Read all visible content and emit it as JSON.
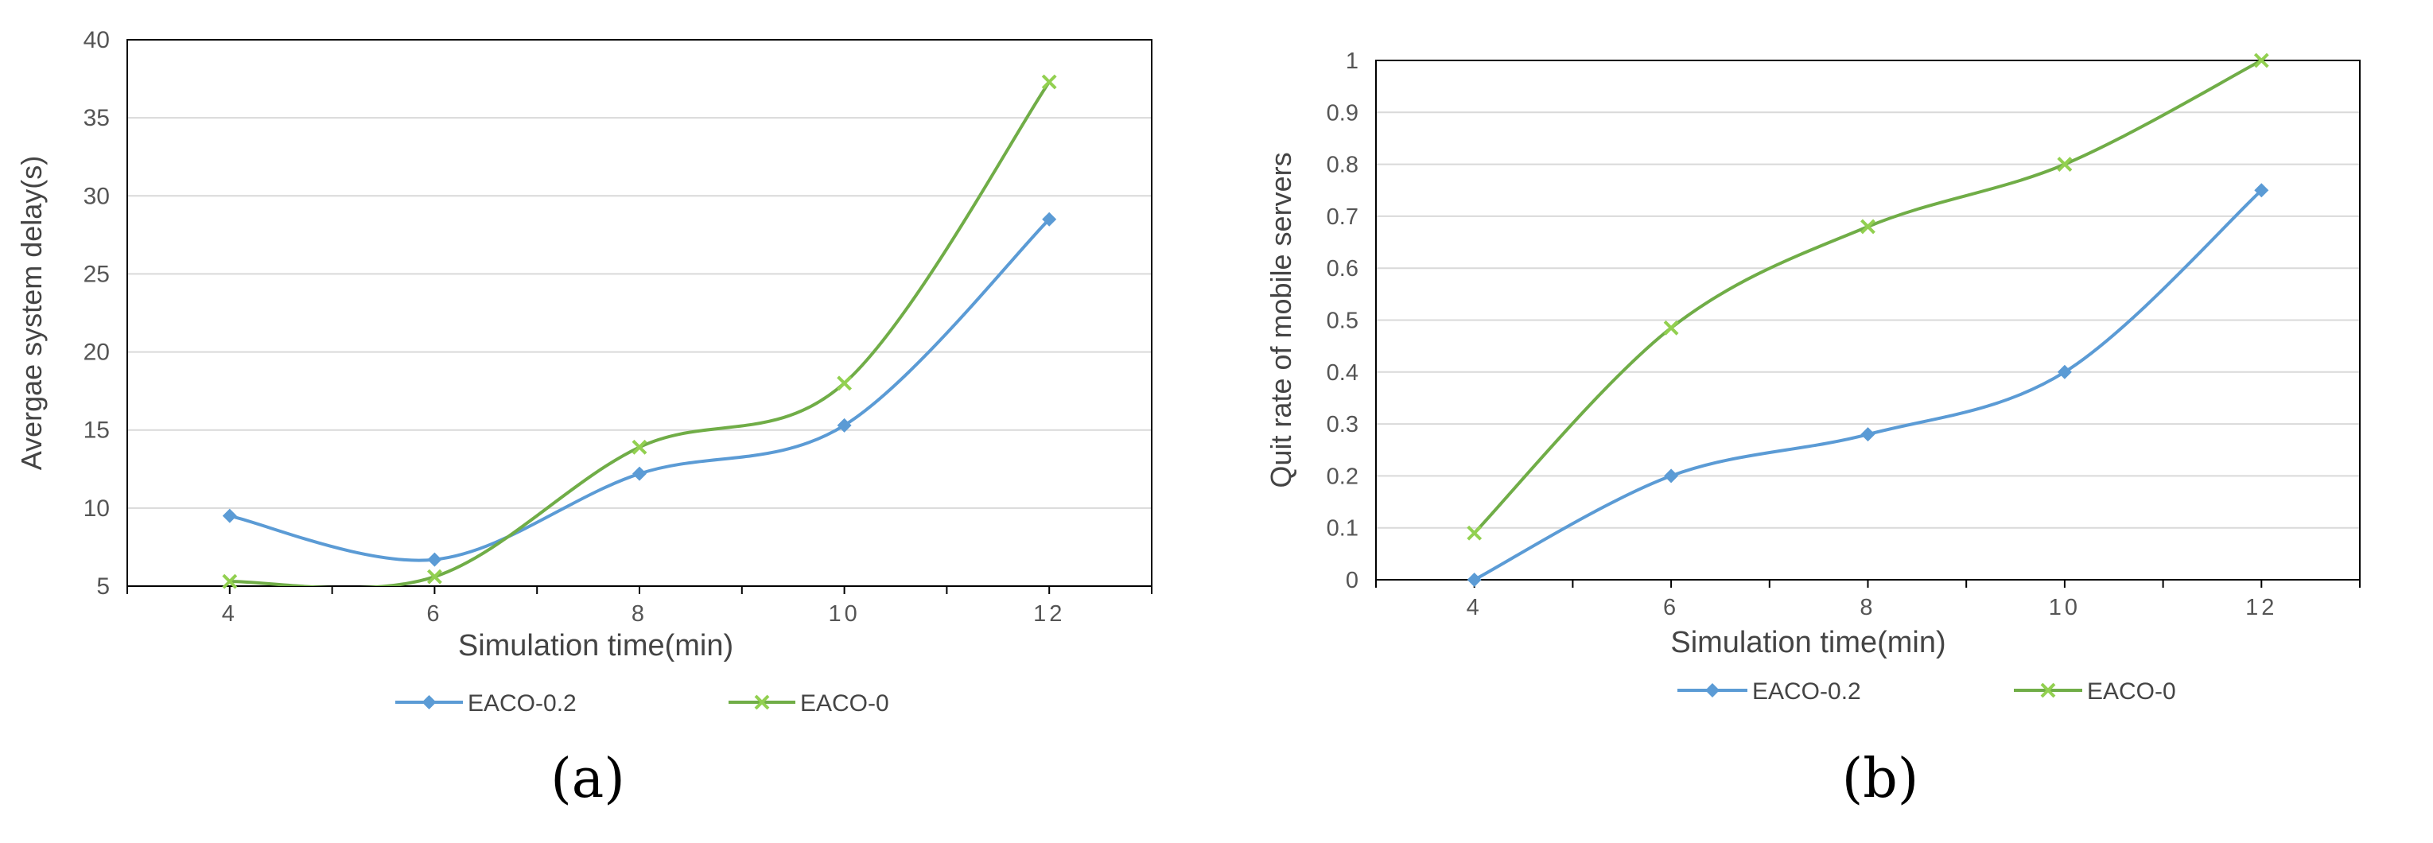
{
  "colors": {
    "series_a": "#5b9bd5",
    "series_b": "#70ad47",
    "marker_b": "#92d050",
    "grid": "#d9d9d9",
    "axis": "#000000",
    "text": "#555555"
  },
  "chart_data": [
    {
      "type": "line",
      "panel_label": "(a)",
      "xlabel": "Simulation time(min)",
      "ylabel": "Avergae system delay(s)",
      "x": [
        4,
        6,
        8,
        10,
        12
      ],
      "x_tick_labels": [
        "4",
        "6",
        "8",
        "10",
        "12"
      ],
      "xlim": [
        3,
        13
      ],
      "ylim": [
        5,
        40
      ],
      "y_ticks": [
        5,
        10,
        15,
        20,
        25,
        30,
        35,
        40
      ],
      "y_tick_labels": [
        "5",
        "10",
        "15",
        "20",
        "25",
        "30",
        "35",
        "40"
      ],
      "grid": true,
      "legend": "bottom",
      "smooth": true,
      "series": [
        {
          "name": "EACO-0.2",
          "marker": "diamond",
          "values": [
            9.5,
            6.7,
            12.2,
            15.3,
            28.5
          ]
        },
        {
          "name": "EACO-0",
          "marker": "x",
          "values": [
            5.3,
            5.6,
            13.9,
            18.0,
            37.3
          ]
        }
      ]
    },
    {
      "type": "line",
      "panel_label": "(b)",
      "xlabel": "Simulation time(min)",
      "ylabel": "Quit rate of mobile servers",
      "x": [
        4,
        6,
        8,
        10,
        12
      ],
      "x_tick_labels": [
        "4",
        "6",
        "8",
        "10",
        "12"
      ],
      "xlim": [
        3,
        13
      ],
      "ylim": [
        0,
        1
      ],
      "y_ticks": [
        0,
        0.1,
        0.2,
        0.3,
        0.4,
        0.5,
        0.6,
        0.7,
        0.8,
        0.9,
        1
      ],
      "y_tick_labels": [
        "0",
        "0.1",
        "0.2",
        "0.3",
        "0.4",
        "0.5",
        "0.6",
        "0.7",
        "0.8",
        "0.9",
        "1"
      ],
      "grid": true,
      "legend": "bottom",
      "smooth": true,
      "series": [
        {
          "name": "EACO-0.2",
          "marker": "diamond",
          "values": [
            0.0,
            0.2,
            0.28,
            0.4,
            0.75
          ]
        },
        {
          "name": "EACO-0",
          "marker": "x",
          "values": [
            0.09,
            0.485,
            0.68,
            0.8,
            1.0
          ]
        }
      ]
    }
  ]
}
